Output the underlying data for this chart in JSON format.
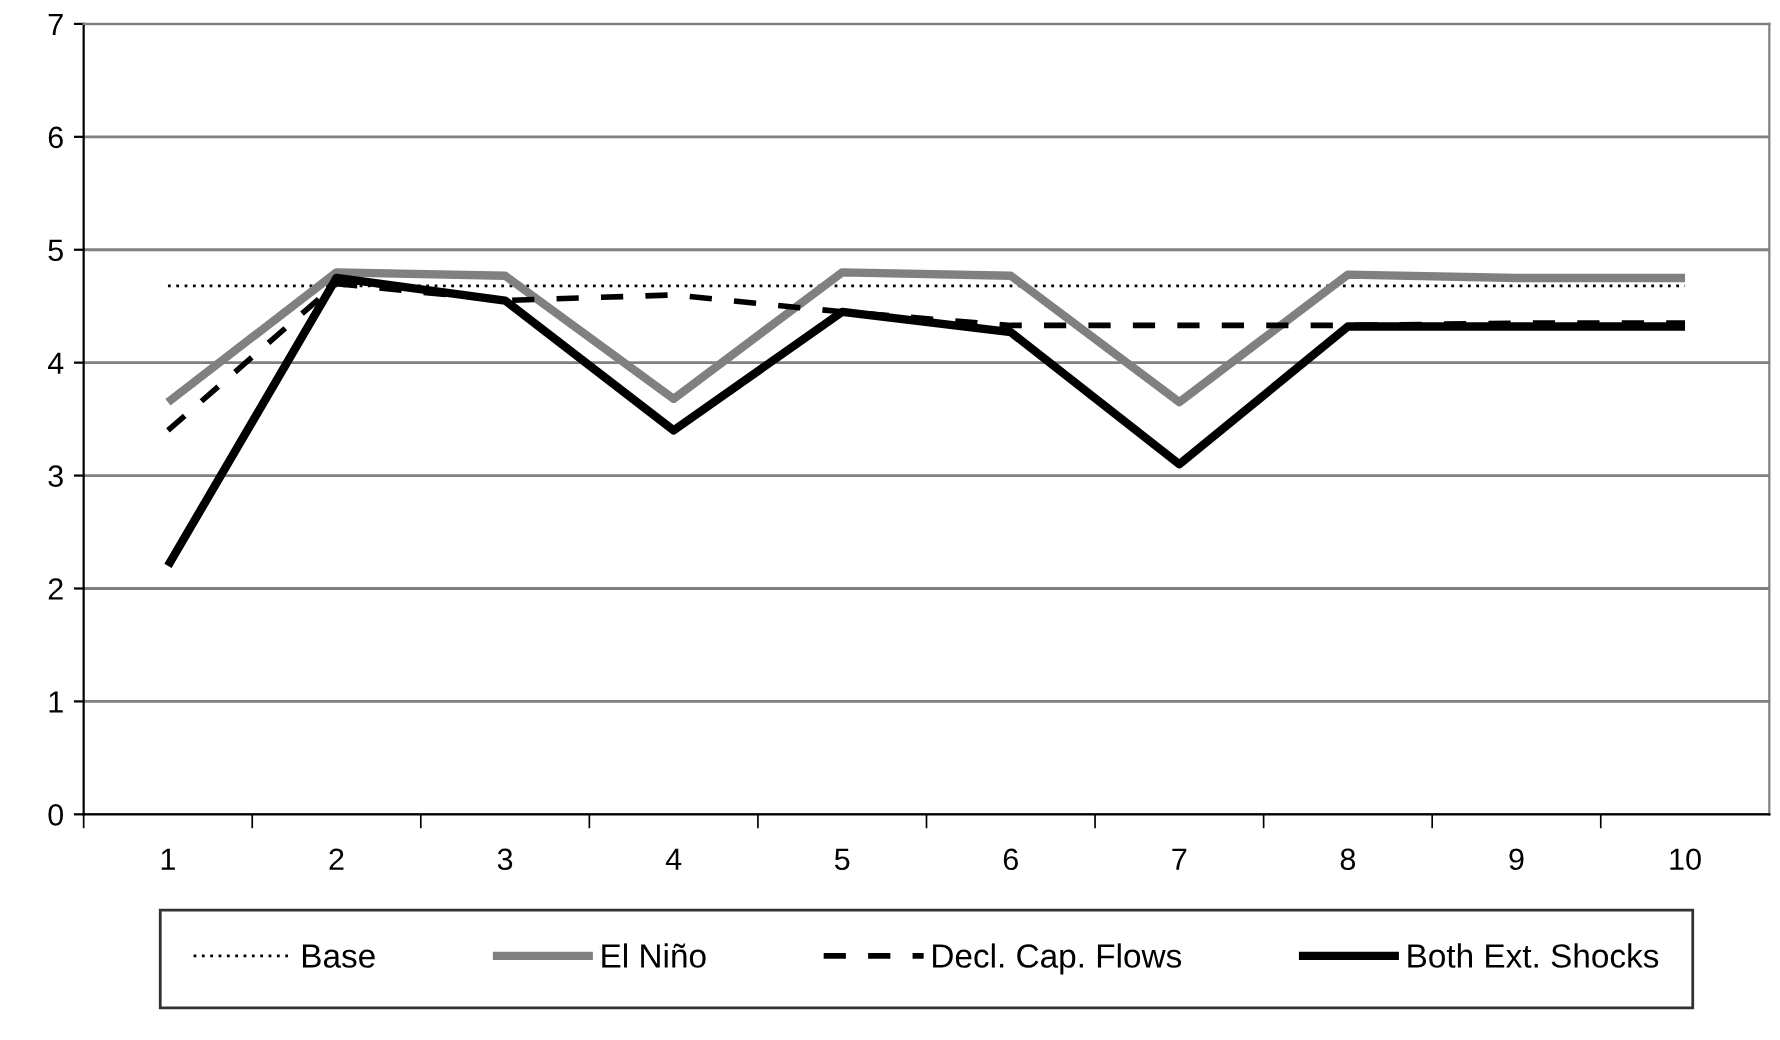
{
  "chart_data": {
    "type": "line",
    "categories": [
      "1",
      "2",
      "3",
      "4",
      "5",
      "6",
      "7",
      "8",
      "9",
      "10"
    ],
    "series": [
      {
        "name": "Base",
        "color": "#000000",
        "line_style": "dotted",
        "values": [
          4.68,
          4.68,
          4.68,
          4.68,
          4.68,
          4.68,
          4.68,
          4.68,
          4.68,
          4.68
        ]
      },
      {
        "name": "El Niño",
        "color": "#808080",
        "line_style": "solid",
        "values": [
          3.65,
          4.8,
          4.77,
          3.68,
          4.8,
          4.77,
          3.65,
          4.78,
          4.75,
          4.75
        ]
      },
      {
        "name": "Decl. Cap. Flows",
        "color": "#000000",
        "line_style": "dashed",
        "values": [
          3.4,
          4.7,
          4.55,
          4.6,
          4.45,
          4.33,
          4.33,
          4.33,
          4.35,
          4.35
        ]
      },
      {
        "name": "Both Ext. Shocks",
        "color": "#000000",
        "line_style": "solid",
        "values": [
          2.2,
          4.75,
          4.55,
          3.4,
          4.45,
          4.27,
          3.1,
          4.32,
          4.32,
          4.32
        ]
      }
    ],
    "ylim": [
      0,
      7
    ],
    "yticks": [
      0,
      1,
      2,
      3,
      4,
      5,
      6,
      7
    ],
    "grid": "y",
    "legend": "bottom",
    "marker": "none"
  }
}
